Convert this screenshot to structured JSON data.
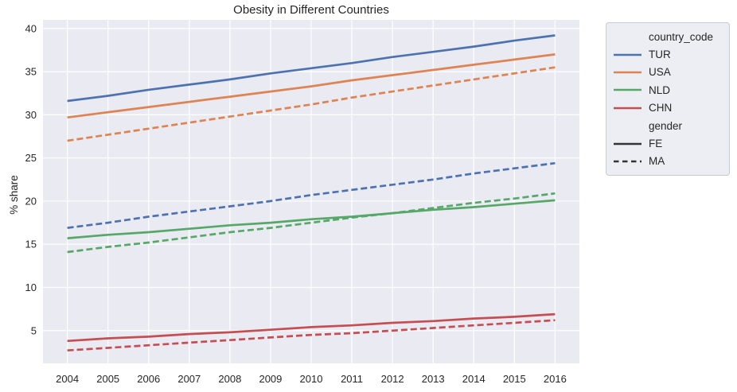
{
  "chart_data": {
    "type": "line",
    "title": "Obesity in Different Countries",
    "xlabel": "",
    "ylabel": "% share",
    "x": [
      2004,
      2005,
      2006,
      2007,
      2008,
      2009,
      2010,
      2011,
      2012,
      2013,
      2014,
      2015,
      2016
    ],
    "xticks": [
      "2004",
      "2005",
      "2006",
      "2007",
      "2008",
      "2009",
      "2010",
      "2011",
      "2012",
      "2013",
      "2014",
      "2015",
      "2016"
    ],
    "yticks": [
      5,
      10,
      15,
      20,
      25,
      30,
      35,
      40
    ],
    "xlim": [
      2003.4,
      2016.6
    ],
    "ylim": [
      1.2,
      41.0
    ],
    "grid": true,
    "legend_position": "outside-right",
    "plot_bg_color": "#eaeaf2",
    "grid_color": "#ffffff",
    "text_color": "#262626",
    "series": [
      {
        "name": "TUR-FE",
        "country_code": "TUR",
        "gender": "FE",
        "style": "solid",
        "color": "#4c72b0",
        "values": [
          31.6,
          32.2,
          32.9,
          33.5,
          34.1,
          34.8,
          35.4,
          36.0,
          36.7,
          37.3,
          37.9,
          38.6,
          39.2
        ]
      },
      {
        "name": "USA-FE",
        "country_code": "USA",
        "gender": "FE",
        "style": "solid",
        "color": "#dd8452",
        "values": [
          29.7,
          30.3,
          30.9,
          31.5,
          32.1,
          32.7,
          33.3,
          34.0,
          34.6,
          35.2,
          35.8,
          36.4,
          37.0
        ]
      },
      {
        "name": "NLD-FE",
        "country_code": "NLD",
        "gender": "FE",
        "style": "solid",
        "color": "#55a868",
        "values": [
          15.7,
          16.1,
          16.4,
          16.8,
          17.2,
          17.5,
          17.9,
          18.2,
          18.6,
          19.0,
          19.3,
          19.7,
          20.1
        ]
      },
      {
        "name": "CHN-FE",
        "country_code": "CHN",
        "gender": "FE",
        "style": "solid",
        "color": "#c44e52",
        "values": [
          3.8,
          4.1,
          4.3,
          4.6,
          4.8,
          5.1,
          5.4,
          5.6,
          5.9,
          6.1,
          6.4,
          6.6,
          6.9
        ]
      },
      {
        "name": "TUR-MA",
        "country_code": "TUR",
        "gender": "MA",
        "style": "dashed",
        "color": "#4c72b0",
        "values": [
          16.9,
          17.5,
          18.2,
          18.8,
          19.4,
          20.0,
          20.7,
          21.3,
          21.9,
          22.5,
          23.2,
          23.8,
          24.4
        ]
      },
      {
        "name": "USA-MA",
        "country_code": "USA",
        "gender": "MA",
        "style": "dashed",
        "color": "#dd8452",
        "values": [
          27.0,
          27.7,
          28.4,
          29.1,
          29.8,
          30.5,
          31.2,
          32.0,
          32.7,
          33.4,
          34.1,
          34.8,
          35.5
        ]
      },
      {
        "name": "NLD-MA",
        "country_code": "NLD",
        "gender": "MA",
        "style": "dashed",
        "color": "#55a868",
        "values": [
          14.1,
          14.7,
          15.2,
          15.8,
          16.4,
          16.9,
          17.5,
          18.1,
          18.6,
          19.2,
          19.8,
          20.3,
          20.9
        ]
      },
      {
        "name": "CHN-MA",
        "country_code": "CHN",
        "gender": "MA",
        "style": "dashed",
        "color": "#c44e52",
        "values": [
          2.7,
          3.0,
          3.3,
          3.6,
          3.9,
          4.2,
          4.5,
          4.7,
          5.0,
          5.3,
          5.6,
          5.9,
          6.2
        ]
      }
    ]
  },
  "legend": {
    "sections": [
      {
        "title": "country_code",
        "items": [
          {
            "label": "TUR",
            "color": "#4c72b0",
            "style": "solid"
          },
          {
            "label": "USA",
            "color": "#dd8452",
            "style": "solid"
          },
          {
            "label": "NLD",
            "color": "#55a868",
            "style": "solid"
          },
          {
            "label": "CHN",
            "color": "#c44e52",
            "style": "solid"
          }
        ]
      },
      {
        "title": "gender",
        "items": [
          {
            "label": "FE",
            "color": "#333333",
            "style": "solid"
          },
          {
            "label": "MA",
            "color": "#333333",
            "style": "dashed"
          }
        ]
      }
    ]
  }
}
